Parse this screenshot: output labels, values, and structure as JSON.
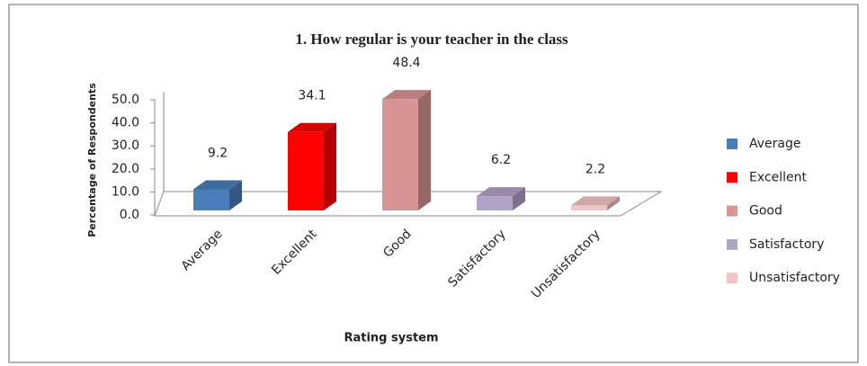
{
  "chart_data": {
    "type": "bar3d",
    "title": "1. How regular is your teacher in the class",
    "x_label": "Rating system",
    "y_label": "Percentage of Respondents",
    "categories": [
      "Average",
      "Excellent",
      "Good",
      "Satisfactory",
      "Unsatisfactory"
    ],
    "values": [
      9.2,
      34.1,
      48.4,
      6.2,
      2.2
    ],
    "colors": [
      "#4a7ebb",
      "#ff0000",
      "#d99594",
      "#b3a2c7",
      "#f2c4c4"
    ],
    "ylim": [
      0,
      50
    ],
    "yticks": [
      {
        "value": 0,
        "label": "0.0"
      },
      {
        "value": 10,
        "label": "10.0"
      },
      {
        "value": 20,
        "label": "20.0"
      },
      {
        "value": 30,
        "label": "30.0"
      },
      {
        "value": 40,
        "label": "40.0"
      },
      {
        "value": 50,
        "label": "50.0"
      }
    ],
    "legend": "right"
  }
}
